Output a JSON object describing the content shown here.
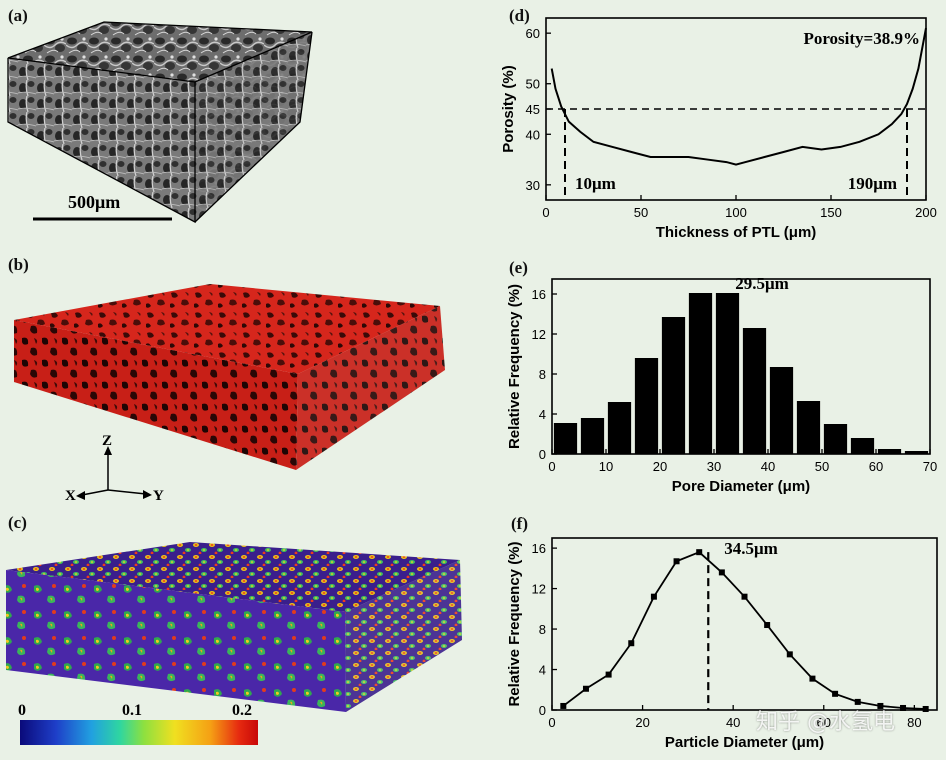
{
  "panels": {
    "a": {
      "label": "(a)",
      "scalebar": "500μm"
    },
    "b": {
      "label": "(b)",
      "axes": {
        "z": "Z",
        "x": "X",
        "y": "Y"
      }
    },
    "c": {
      "label": "(c)",
      "colorbar_ticks": [
        "0",
        "0.1",
        "0.2"
      ]
    },
    "d": {
      "label": "(d)"
    },
    "e": {
      "label": "(e)"
    },
    "f": {
      "label": "(f)"
    }
  },
  "watermark": "知乎 @水氢电",
  "colors": {
    "background": "#e9f1e6",
    "pore_red": "#d6261c",
    "bars": "#000000"
  },
  "chart_data": [
    {
      "id": "d",
      "type": "line",
      "xlabel": "Thickness of PTL (μm)",
      "ylabel": "Porosity (%)",
      "xlim": [
        0,
        200
      ],
      "ylim": [
        27,
        63
      ],
      "xticks": [
        0,
        50,
        100,
        150,
        200
      ],
      "yticks": [
        30,
        40,
        45,
        50,
        60
      ],
      "x": [
        3,
        5,
        8,
        12,
        18,
        25,
        35,
        45,
        55,
        65,
        75,
        85,
        95,
        100,
        105,
        115,
        125,
        135,
        145,
        155,
        165,
        175,
        182,
        187,
        190,
        193,
        196,
        198,
        200
      ],
      "y": [
        53,
        49,
        45.5,
        42.5,
        40.5,
        38.5,
        37.5,
        36.5,
        35.5,
        35.5,
        35.5,
        35,
        34.5,
        34,
        34.5,
        35.5,
        36.5,
        37.5,
        37,
        37.5,
        38.5,
        40,
        42,
        44,
        46,
        49,
        53,
        57,
        61
      ],
      "annotations": {
        "porosity": "Porosity=38.9%",
        "left_marker": "10μm",
        "right_marker": "190μm"
      },
      "reference_line": 45,
      "markers_x": [
        10,
        190
      ]
    },
    {
      "id": "e",
      "type": "bar",
      "xlabel": "Pore Diameter (μm)",
      "ylabel": "Relative Frequency (%)",
      "xlim": [
        0,
        70
      ],
      "ylim": [
        0,
        17.5
      ],
      "xticks": [
        0,
        10,
        20,
        30,
        40,
        50,
        60,
        70
      ],
      "yticks": [
        0,
        4,
        8,
        12,
        16
      ],
      "x": [
        2.5,
        7.5,
        12.5,
        17.5,
        22.5,
        27.5,
        32.5,
        37.5,
        42.5,
        47.5,
        52.5,
        57.5,
        62.5,
        67.5
      ],
      "values": [
        3.1,
        3.6,
        5.2,
        9.6,
        13.7,
        16.1,
        16.1,
        12.6,
        8.7,
        5.3,
        3.0,
        1.6,
        0.5,
        0.3
      ],
      "annotation": "29.5μm"
    },
    {
      "id": "f",
      "type": "line",
      "xlabel": "Particle Diameter (μm)",
      "ylabel": "Relative Frequency (%)",
      "xlim": [
        0,
        85
      ],
      "ylim": [
        0,
        17
      ],
      "xticks": [
        0,
        20,
        40,
        60,
        80
      ],
      "yticks": [
        0,
        4,
        8,
        12,
        16
      ],
      "x": [
        2.5,
        7.5,
        12.5,
        17.5,
        22.5,
        27.5,
        32.5,
        37.5,
        42.5,
        47.5,
        52.5,
        57.5,
        62.5,
        67.5,
        72.5,
        77.5,
        82.5
      ],
      "y": [
        0.4,
        2.1,
        3.5,
        6.6,
        11.2,
        14.7,
        15.6,
        13.6,
        11.2,
        8.4,
        5.5,
        3.1,
        1.6,
        0.8,
        0.4,
        0.2,
        0.1
      ],
      "annotation": "34.5μm",
      "peak_x": 34.5
    }
  ]
}
